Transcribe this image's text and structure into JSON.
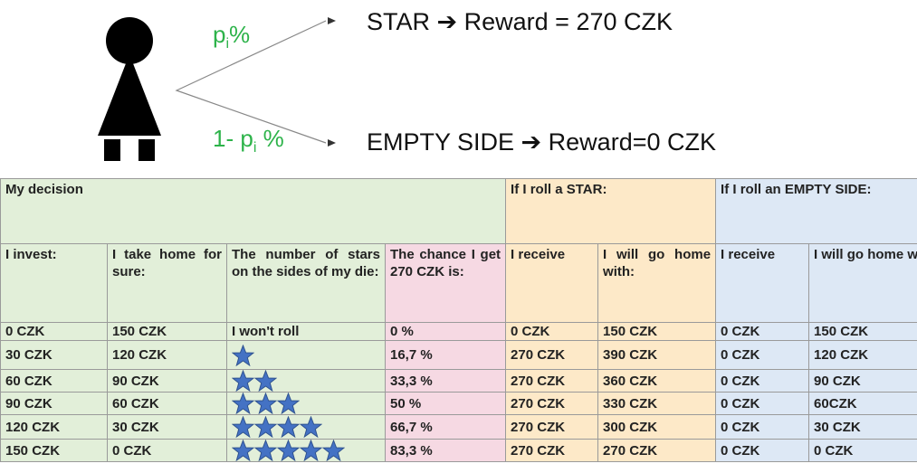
{
  "branch_top": {
    "text": "p",
    "sub": "i",
    "after": "%"
  },
  "branch_bottom": {
    "text": "1- p",
    "sub": "i",
    "after": " %"
  },
  "outcome_top": "STAR ➔ Reward = 270 CZK",
  "outcome_bottom": "EMPTY SIDE ➔ Reward=0 CZK",
  "table": {
    "groups": [
      {
        "label": "My decision",
        "span": 4,
        "color": "#e2efd9"
      },
      {
        "label": "If I roll a STAR:",
        "span": 2,
        "color": "#fde9c8"
      },
      {
        "label": "If I roll an EMPTY SIDE:",
        "span": 2,
        "color": "#dde8f5"
      }
    ],
    "headers": [
      "I invest:",
      "I take home for sure:",
      "The number of stars on the sides of my die:",
      "The chance I get 270 CZK is:",
      "I receive",
      "I will go home with:",
      "I receive",
      "I will go home with:"
    ],
    "rows": [
      [
        "0 CZK",
        "150 CZK",
        "I won't roll",
        "0 %",
        "0 CZK",
        "150 CZK",
        "0 CZK",
        "150 CZK"
      ],
      [
        "30 CZK",
        "120 CZK",
        1,
        "16,7 %",
        "270 CZK",
        "390 CZK",
        "0 CZK",
        "120 CZK"
      ],
      [
        "60 CZK",
        "90 CZK",
        2,
        "33,3 %",
        "270 CZK",
        "360 CZK",
        "0 CZK",
        "90 CZK"
      ],
      [
        "90 CZK",
        "60 CZK",
        3,
        "50 %",
        "270 CZK",
        "330 CZK",
        "0 CZK",
        "60CZK"
      ],
      [
        "120 CZK",
        "30 CZK",
        4,
        "66,7 %",
        "270 CZK",
        "300 CZK",
        "0 CZK",
        "30 CZK"
      ],
      [
        "150 CZK",
        "0 CZK",
        5,
        "83,3 %",
        "270 CZK",
        "270 CZK",
        "0 CZK",
        "0 CZK"
      ]
    ]
  }
}
